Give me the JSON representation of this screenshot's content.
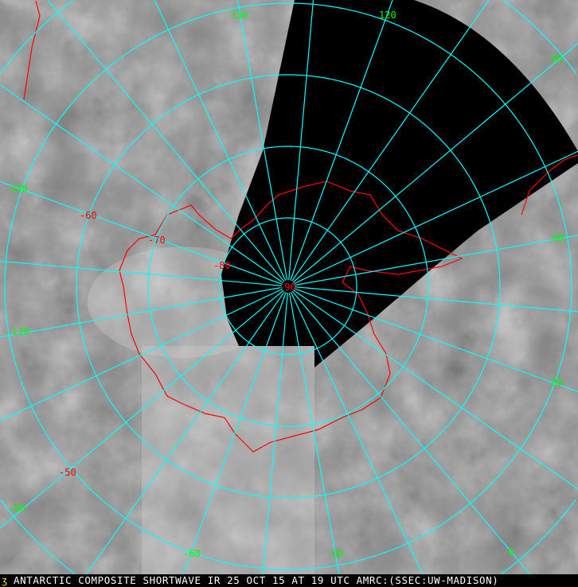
{
  "caption": "ANTARCTIC COMPOSITE SHORTWAVE IR 25 OCT 15 AT 19 UTC AMRC:(SSEC:UW-MADISON)",
  "caption_mark": "ʒ",
  "colors": {
    "graticule": "#00ffff",
    "longitude_labels": "#00ff00",
    "latitude_labels": "#ff0000",
    "coastline": "#ff0000",
    "no_data": "#000000"
  },
  "longitude_labels": [
    "150",
    "120",
    "90",
    "60",
    "30",
    "0",
    "-30",
    "-60",
    "-90",
    "-120",
    "-150"
  ],
  "latitude_labels": [
    "-90",
    "-80",
    "-70",
    "-60",
    "-50"
  ]
}
